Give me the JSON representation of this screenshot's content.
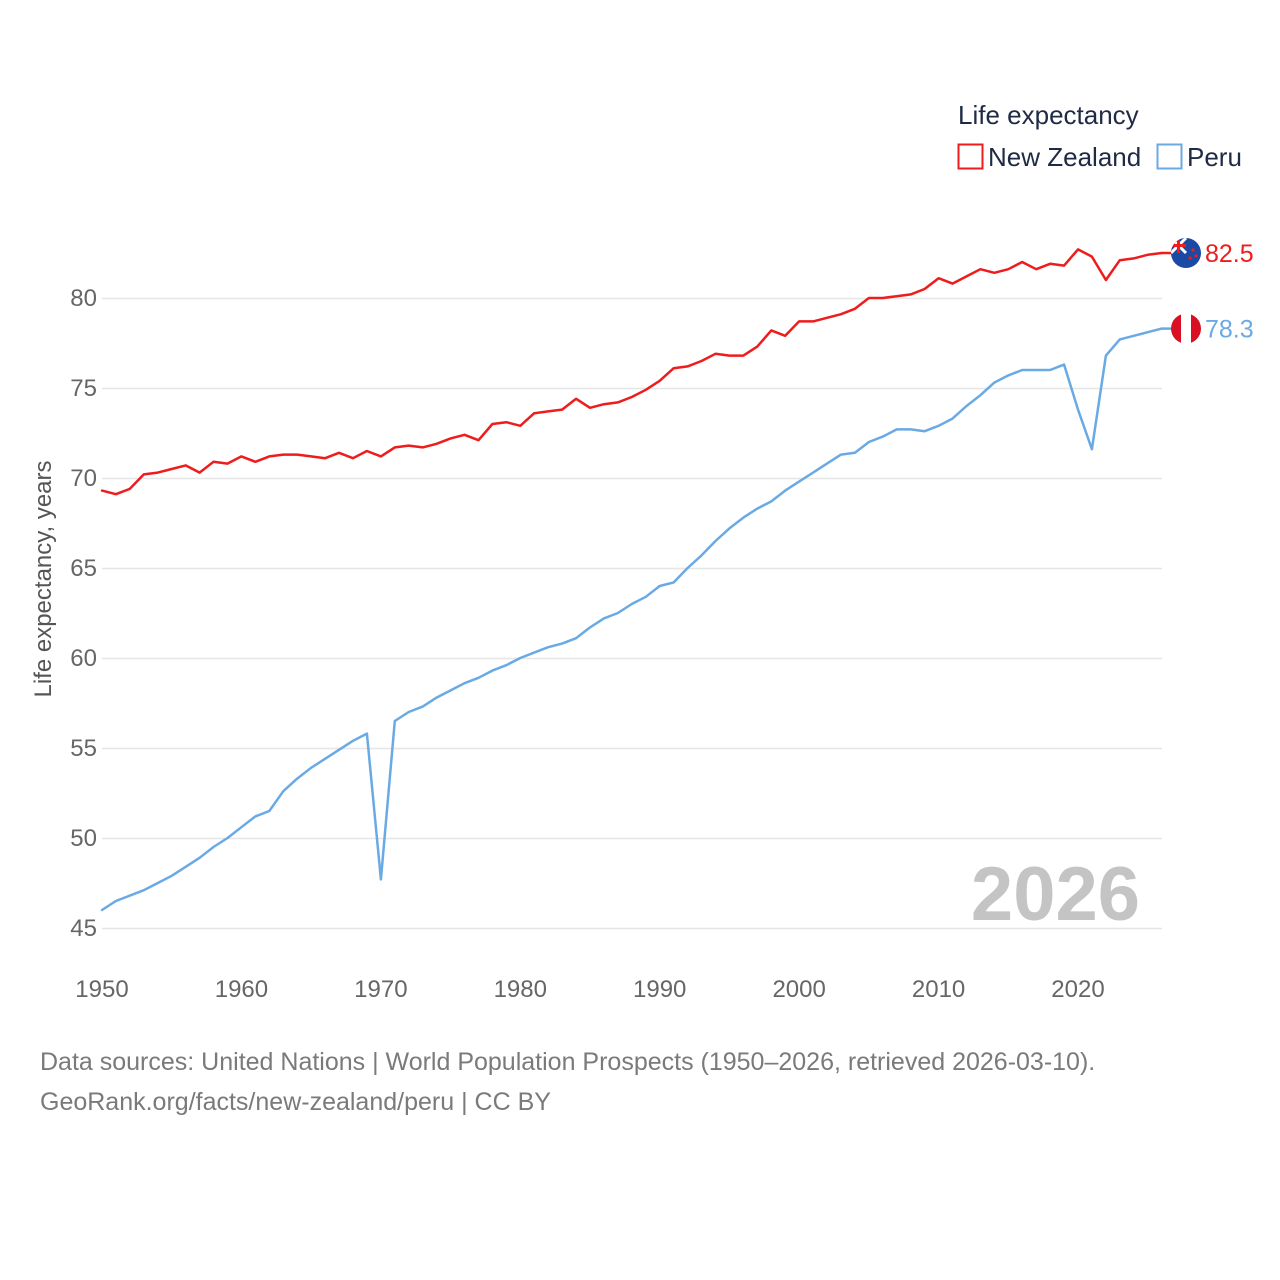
{
  "legend": {
    "title": "Life expectancy",
    "items": [
      {
        "label": "New Zealand",
        "color": "#ee1c1c"
      },
      {
        "label": "Peru",
        "color": "#6aaae4"
      }
    ]
  },
  "year_label": "2026",
  "footer": {
    "source_line": "Data sources: United Nations | World Population Prospects (1950–2026, retrieved 2026-03-10).",
    "credit_line": "GeoRank.org/facts/new-zealand/peru | CC BY"
  },
  "chart_data": {
    "type": "line",
    "title": "Life expectancy",
    "xlabel": "",
    "ylabel": "Life expectancy, years",
    "xlim": [
      1950,
      2026
    ],
    "ylim": [
      45,
      83
    ],
    "x_ticks": [
      1950,
      1960,
      1970,
      1980,
      1990,
      2000,
      2010,
      2020
    ],
    "y_ticks": [
      45,
      50,
      55,
      60,
      65,
      70,
      75,
      80
    ],
    "grid": true,
    "legend_position": "top-right",
    "x": [
      1950,
      1951,
      1952,
      1953,
      1954,
      1955,
      1956,
      1957,
      1958,
      1959,
      1960,
      1961,
      1962,
      1963,
      1964,
      1965,
      1966,
      1967,
      1968,
      1969,
      1970,
      1971,
      1972,
      1973,
      1974,
      1975,
      1976,
      1977,
      1978,
      1979,
      1980,
      1981,
      1982,
      1983,
      1984,
      1985,
      1986,
      1987,
      1988,
      1989,
      1990,
      1991,
      1992,
      1993,
      1994,
      1995,
      1996,
      1997,
      1998,
      1999,
      2000,
      2001,
      2002,
      2003,
      2004,
      2005,
      2006,
      2007,
      2008,
      2009,
      2010,
      2011,
      2012,
      2013,
      2014,
      2015,
      2016,
      2017,
      2018,
      2019,
      2020,
      2021,
      2022,
      2023,
      2024,
      2025,
      2026
    ],
    "series": [
      {
        "name": "New Zealand",
        "color": "#ee1c1c",
        "end_label": "82.5",
        "flag_icon": "new-zealand-flag-icon",
        "values": [
          69.3,
          69.1,
          69.4,
          70.2,
          70.3,
          70.5,
          70.7,
          70.3,
          70.9,
          70.8,
          71.2,
          70.9,
          71.2,
          71.3,
          71.3,
          71.2,
          71.1,
          71.4,
          71.1,
          71.5,
          71.2,
          71.7,
          71.8,
          71.7,
          71.9,
          72.2,
          72.4,
          72.1,
          73.0,
          73.1,
          72.9,
          73.6,
          73.7,
          73.8,
          74.4,
          73.9,
          74.1,
          74.2,
          74.5,
          74.9,
          75.4,
          76.1,
          76.2,
          76.5,
          76.9,
          76.8,
          76.8,
          77.3,
          78.2,
          77.9,
          78.7,
          78.7,
          78.9,
          79.1,
          79.4,
          80.0,
          80.0,
          80.1,
          80.2,
          80.5,
          81.1,
          80.8,
          81.2,
          81.6,
          81.4,
          81.6,
          82.0,
          81.6,
          81.9,
          81.8,
          82.7,
          82.3,
          81.0,
          82.1,
          82.2,
          82.4,
          82.5
        ]
      },
      {
        "name": "Peru",
        "color": "#6aaae4",
        "end_label": "78.3",
        "flag_icon": "peru-flag-icon",
        "values": [
          46.0,
          46.5,
          46.8,
          47.1,
          47.5,
          47.9,
          48.4,
          48.9,
          49.5,
          50.0,
          50.6,
          51.2,
          51.5,
          52.6,
          53.3,
          53.9,
          54.4,
          54.9,
          55.4,
          55.8,
          47.7,
          56.5,
          57.0,
          57.3,
          57.8,
          58.2,
          58.6,
          58.9,
          59.3,
          59.6,
          60.0,
          60.3,
          60.6,
          60.8,
          61.1,
          61.7,
          62.2,
          62.5,
          63.0,
          63.4,
          64.0,
          64.2,
          65.0,
          65.7,
          66.5,
          67.2,
          67.8,
          68.3,
          68.7,
          69.3,
          69.8,
          70.3,
          70.8,
          71.3,
          71.4,
          72.0,
          72.3,
          72.7,
          72.7,
          72.6,
          72.9,
          73.3,
          74.0,
          74.6,
          75.3,
          75.7,
          76.0,
          76.0,
          76.0,
          76.3,
          73.8,
          71.6,
          76.8,
          77.7,
          77.9,
          78.1,
          78.3
        ]
      }
    ]
  }
}
